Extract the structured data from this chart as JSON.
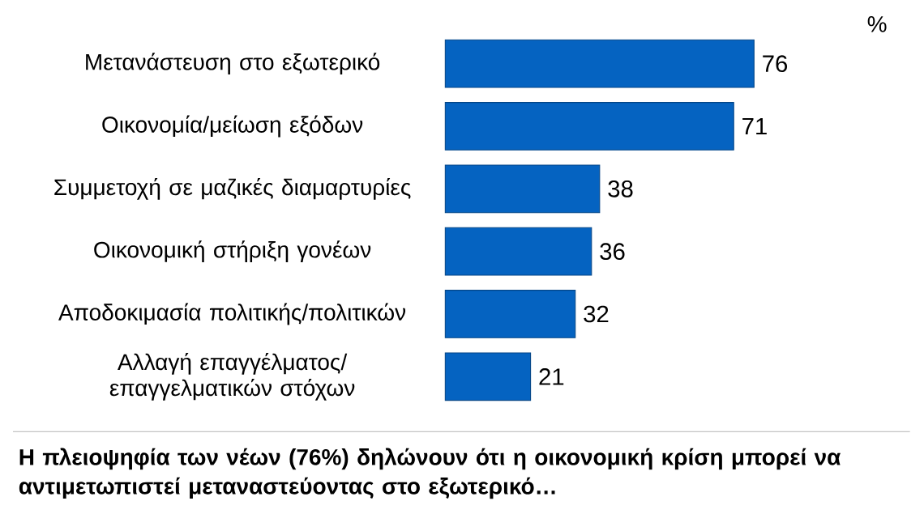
{
  "chart_data": {
    "type": "bar",
    "orientation": "horizontal",
    "categories": [
      "Μετανάστευση στο εξωτερικό",
      "Οικονομία/μείωση εξόδων",
      "Συμμετοχή σε μαζικές διαμαρτυρίες",
      "Οικονομική στήριξη γονέων",
      "Αποδοκιμασία πολιτικής/πολιτικών",
      "Αλλαγή επαγγέλματος/ επαγγελματικών στόχων"
    ],
    "values": [
      76,
      71,
      38,
      36,
      32,
      21
    ],
    "color": "#0563c1",
    "data_labels": true,
    "annotations": [
      "%",
      "Η πλειοψηφία των νέων (76%) δηλώνουν ότι η οικονομική κρίση μπορεί να αντιμετωπιστεί μεταναστεύοντας στο εξωτερικό…"
    ]
  }
}
